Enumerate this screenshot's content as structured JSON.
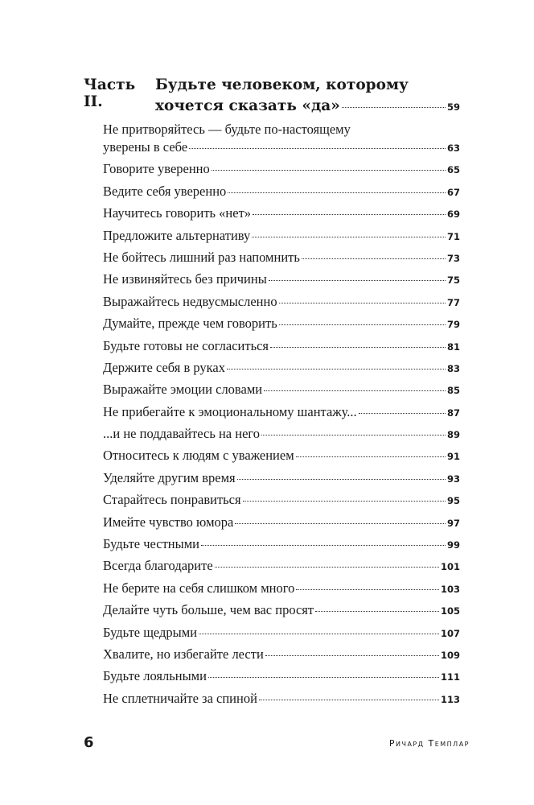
{
  "part": {
    "label": "Часть II.",
    "title_line1": "Будьте человеком, которому",
    "title_line2": "хочется сказать «да»",
    "page": "59"
  },
  "first_entry": {
    "line1": "Не притворяйтесь — будьте по-настоящему",
    "line2": "уверены в себе",
    "page": "63"
  },
  "entries": [
    {
      "title": "Говорите уверенно",
      "page": "65"
    },
    {
      "title": "Ведите себя уверенно",
      "page": "67"
    },
    {
      "title": "Научитесь говорить «нет»",
      "page": "69"
    },
    {
      "title": "Предложите альтернативу",
      "page": "71"
    },
    {
      "title": "Не бойтесь лишний раз напомнить",
      "page": "73"
    },
    {
      "title": "Не извиняйтесь без причины",
      "page": "75"
    },
    {
      "title": "Выражайтесь недвусмысленно",
      "page": "77"
    },
    {
      "title": "Думайте, прежде чем говорить",
      "page": "79"
    },
    {
      "title": "Будьте готовы не согласиться",
      "page": "81"
    },
    {
      "title": "Держите себя в руках",
      "page": "83"
    },
    {
      "title": "Выражайте эмоции словами",
      "page": "85"
    },
    {
      "title": "Не прибегайте к эмоциональному шантажу...",
      "page": "87"
    },
    {
      "title": "...и не поддавайтесь на него",
      "page": "89"
    },
    {
      "title": "Относитесь к людям с уважением",
      "page": "91"
    },
    {
      "title": "Уделяйте другим время",
      "page": "93"
    },
    {
      "title": "Старайтесь понравиться",
      "page": "95"
    },
    {
      "title": "Имейте чувство юмора",
      "page": "97"
    },
    {
      "title": "Будьте честными",
      "page": "99"
    },
    {
      "title": "Всегда благодарите",
      "page": "101"
    },
    {
      "title": "Не берите на себя слишком много",
      "page": "103"
    },
    {
      "title": "Делайте чуть больше, чем вас просят",
      "page": "105"
    },
    {
      "title": "Будьте щедрыми",
      "page": "107"
    },
    {
      "title": "Хвалите, но избегайте лести",
      "page": "109"
    },
    {
      "title": "Будьте лояльными",
      "page": "111"
    },
    {
      "title": "Не сплетничайте за спиной",
      "page": "113"
    }
  ],
  "footer": {
    "page_number": "6",
    "author": "Ричард Темплар"
  }
}
